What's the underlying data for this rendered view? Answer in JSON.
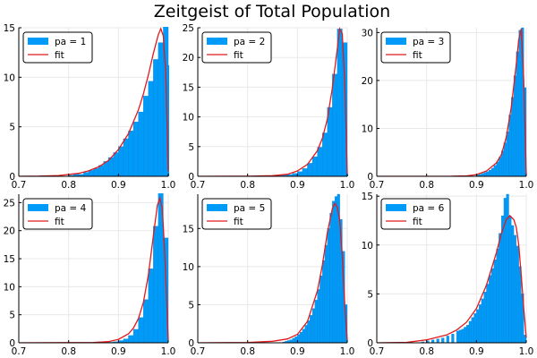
{
  "figure": {
    "title": "Zeitgeist of Total Population"
  },
  "colors": {
    "bar": "#009AF9",
    "fit": "#E21A1C",
    "axis": "#000000",
    "grid": "#e8e8e8"
  },
  "chart_data": [
    {
      "type": "bar",
      "legend": {
        "bar_label": "pa = 1",
        "fit_label": "fit",
        "placement": "top-left"
      },
      "xlim": [
        0.7,
        1.0
      ],
      "xticks": [
        0.7,
        0.8,
        0.9,
        1.0
      ],
      "xtick_labels": [
        "0.7",
        "0.8",
        "0.9",
        "1.0"
      ],
      "ylim": [
        0,
        15
      ],
      "yticks": [
        0,
        5,
        10,
        15
      ],
      "ytick_labels": [
        "0",
        "5",
        "10",
        "15"
      ],
      "bin_width": 0.01,
      "bins": [
        {
          "x": 0.8,
          "y": 0.1
        },
        {
          "x": 0.81,
          "y": 0.2
        },
        {
          "x": 0.82,
          "y": 0.2
        },
        {
          "x": 0.83,
          "y": 0.4
        },
        {
          "x": 0.84,
          "y": 0.6
        },
        {
          "x": 0.85,
          "y": 0.8
        },
        {
          "x": 0.86,
          "y": 1.1
        },
        {
          "x": 0.87,
          "y": 1.5
        },
        {
          "x": 0.88,
          "y": 1.9
        },
        {
          "x": 0.89,
          "y": 2.4
        },
        {
          "x": 0.9,
          "y": 3.0
        },
        {
          "x": 0.91,
          "y": 3.8
        },
        {
          "x": 0.92,
          "y": 4.6
        },
        {
          "x": 0.93,
          "y": 5.5
        },
        {
          "x": 0.94,
          "y": 6.5
        },
        {
          "x": 0.95,
          "y": 8.1
        },
        {
          "x": 0.96,
          "y": 9.6
        },
        {
          "x": 0.97,
          "y": 11.8
        },
        {
          "x": 0.98,
          "y": 13.5
        },
        {
          "x": 0.99,
          "y": 15.3
        },
        {
          "x": 1.0,
          "y": 11.2
        }
      ],
      "fit": [
        [
          0.7,
          0
        ],
        [
          0.74,
          0.02
        ],
        [
          0.78,
          0.08
        ],
        [
          0.82,
          0.3
        ],
        [
          0.84,
          0.55
        ],
        [
          0.86,
          0.95
        ],
        [
          0.88,
          1.6
        ],
        [
          0.9,
          2.7
        ],
        [
          0.92,
          4.3
        ],
        [
          0.94,
          6.7
        ],
        [
          0.95,
          8.3
        ],
        [
          0.96,
          10.2
        ],
        [
          0.97,
          12.4
        ],
        [
          0.98,
          14.3
        ],
        [
          0.985,
          14.9
        ],
        [
          0.99,
          14.2
        ],
        [
          0.995,
          10.5
        ],
        [
          1.0,
          0.5
        ]
      ]
    },
    {
      "type": "bar",
      "legend": {
        "bar_label": "pa = 2",
        "fit_label": "fit",
        "placement": "top-left"
      },
      "xlim": [
        0.7,
        1.0
      ],
      "xticks": [
        0.7,
        0.8,
        0.9,
        1.0
      ],
      "xtick_labels": [
        "0.7",
        "0.8",
        "0.9",
        "1.0"
      ],
      "ylim": [
        0,
        25
      ],
      "yticks": [
        0,
        5,
        10,
        15,
        20,
        25
      ],
      "ytick_labels": [
        "0",
        "5",
        "10",
        "15",
        "20",
        "25"
      ],
      "bin_width": 0.01,
      "bins": [
        {
          "x": 0.86,
          "y": 0.1
        },
        {
          "x": 0.87,
          "y": 0.2
        },
        {
          "x": 0.88,
          "y": 0.3
        },
        {
          "x": 0.89,
          "y": 0.5
        },
        {
          "x": 0.9,
          "y": 0.8
        },
        {
          "x": 0.91,
          "y": 1.3
        },
        {
          "x": 0.92,
          "y": 2.2
        },
        {
          "x": 0.93,
          "y": 3.3
        },
        {
          "x": 0.94,
          "y": 4.9
        },
        {
          "x": 0.95,
          "y": 7.3
        },
        {
          "x": 0.96,
          "y": 11.6
        },
        {
          "x": 0.97,
          "y": 17.2
        },
        {
          "x": 0.98,
          "y": 24.8
        },
        {
          "x": 0.99,
          "y": 22.5
        },
        {
          "x": 1.0,
          "y": 0.3
        }
      ],
      "fit": [
        [
          0.7,
          0
        ],
        [
          0.8,
          0.02
        ],
        [
          0.85,
          0.1
        ],
        [
          0.88,
          0.35
        ],
        [
          0.9,
          0.9
        ],
        [
          0.92,
          2.0
        ],
        [
          0.94,
          4.3
        ],
        [
          0.95,
          6.4
        ],
        [
          0.96,
          9.6
        ],
        [
          0.97,
          14.8
        ],
        [
          0.98,
          21.5
        ],
        [
          0.985,
          24.8
        ],
        [
          0.99,
          24.0
        ],
        [
          0.995,
          16.0
        ],
        [
          1.0,
          0.4
        ]
      ]
    },
    {
      "type": "bar",
      "legend": {
        "bar_label": "pa = 3",
        "fit_label": "fit",
        "placement": "top-left"
      },
      "xlim": [
        0.7,
        1.0
      ],
      "xticks": [
        0.7,
        0.8,
        0.9,
        1.0
      ],
      "xtick_labels": [
        "0.7",
        "0.8",
        "0.9",
        "1.0"
      ],
      "ylim": [
        0,
        31
      ],
      "yticks": [
        0,
        10,
        20,
        30
      ],
      "ytick_labels": [
        "0",
        "10",
        "20",
        "30"
      ],
      "bin_width": 0.005,
      "bins": [
        {
          "x": 0.9,
          "y": 0.3
        },
        {
          "x": 0.905,
          "y": 0.4
        },
        {
          "x": 0.91,
          "y": 0.6
        },
        {
          "x": 0.915,
          "y": 0.8
        },
        {
          "x": 0.92,
          "y": 1.0
        },
        {
          "x": 0.925,
          "y": 1.3
        },
        {
          "x": 0.93,
          "y": 1.7
        },
        {
          "x": 0.935,
          "y": 2.3
        },
        {
          "x": 0.94,
          "y": 3.0
        },
        {
          "x": 0.945,
          "y": 4.0
        },
        {
          "x": 0.95,
          "y": 5.3
        },
        {
          "x": 0.955,
          "y": 7.0
        },
        {
          "x": 0.96,
          "y": 9.3
        },
        {
          "x": 0.965,
          "y": 12.8
        },
        {
          "x": 0.97,
          "y": 16.5
        },
        {
          "x": 0.975,
          "y": 21.0
        },
        {
          "x": 0.98,
          "y": 26.0
        },
        {
          "x": 0.985,
          "y": 30.5
        },
        {
          "x": 0.99,
          "y": 31.0
        },
        {
          "x": 0.995,
          "y": 18.5
        }
      ],
      "fit": [
        [
          0.7,
          0
        ],
        [
          0.85,
          0.02
        ],
        [
          0.88,
          0.1
        ],
        [
          0.9,
          0.35
        ],
        [
          0.92,
          1.1
        ],
        [
          0.94,
          2.8
        ],
        [
          0.95,
          4.5
        ],
        [
          0.96,
          8.2
        ],
        [
          0.97,
          14.5
        ],
        [
          0.98,
          23.5
        ],
        [
          0.985,
          28.5
        ],
        [
          0.99,
          30.8
        ],
        [
          0.995,
          20.0
        ],
        [
          1.0,
          0.5
        ]
      ]
    },
    {
      "type": "bar",
      "legend": {
        "bar_label": "pa = 4",
        "fit_label": "fit",
        "placement": "top-left"
      },
      "xlim": [
        0.7,
        1.0
      ],
      "xticks": [
        0.7,
        0.8,
        0.9,
        1.0
      ],
      "xtick_labels": [
        "0.7",
        "0.8",
        "0.9",
        "1.0"
      ],
      "ylim": [
        0,
        26.5
      ],
      "yticks": [
        0,
        5,
        10,
        15,
        20,
        25
      ],
      "ytick_labels": [
        "0",
        "5",
        "10",
        "15",
        "20",
        "25"
      ],
      "bin_width": 0.01,
      "bins": [
        {
          "x": 0.88,
          "y": 0.1
        },
        {
          "x": 0.89,
          "y": 0.2
        },
        {
          "x": 0.9,
          "y": 0.4
        },
        {
          "x": 0.91,
          "y": 0.7
        },
        {
          "x": 0.92,
          "y": 1.3
        },
        {
          "x": 0.93,
          "y": 2.4
        },
        {
          "x": 0.94,
          "y": 4.5
        },
        {
          "x": 0.95,
          "y": 7.7
        },
        {
          "x": 0.96,
          "y": 13.2
        },
        {
          "x": 0.97,
          "y": 20.8
        },
        {
          "x": 0.98,
          "y": 26.8
        },
        {
          "x": 0.99,
          "y": 18.7
        }
      ],
      "fit": [
        [
          0.7,
          0
        ],
        [
          0.85,
          0.05
        ],
        [
          0.88,
          0.2
        ],
        [
          0.9,
          0.6
        ],
        [
          0.92,
          1.6
        ],
        [
          0.93,
          2.6
        ],
        [
          0.94,
          4.3
        ],
        [
          0.95,
          7.2
        ],
        [
          0.96,
          12.0
        ],
        [
          0.97,
          19.0
        ],
        [
          0.978,
          24.5
        ],
        [
          0.983,
          25.8
        ],
        [
          0.988,
          24.0
        ],
        [
          0.993,
          16.0
        ],
        [
          1.0,
          0.5
        ]
      ]
    },
    {
      "type": "bar",
      "legend": {
        "bar_label": "pa = 5",
        "fit_label": "fit",
        "placement": "top-left"
      },
      "xlim": [
        0.7,
        1.0
      ],
      "xticks": [
        0.7,
        0.8,
        0.9,
        1.0
      ],
      "xtick_labels": [
        "0.7",
        "0.8",
        "0.9",
        "1.0"
      ],
      "ylim": [
        0,
        19.5
      ],
      "yticks": [
        0,
        5,
        10,
        15
      ],
      "ytick_labels": [
        "0",
        "5",
        "10",
        "15"
      ],
      "bin_width": 0.005,
      "bins": [
        {
          "x": 0.87,
          "y": 0.1
        },
        {
          "x": 0.875,
          "y": 0.2
        },
        {
          "x": 0.88,
          "y": 0.3
        },
        {
          "x": 0.885,
          "y": 0.4
        },
        {
          "x": 0.89,
          "y": 0.6
        },
        {
          "x": 0.895,
          "y": 0.8
        },
        {
          "x": 0.9,
          "y": 1.1
        },
        {
          "x": 0.905,
          "y": 1.4
        },
        {
          "x": 0.91,
          "y": 1.8
        },
        {
          "x": 0.915,
          "y": 2.3
        },
        {
          "x": 0.92,
          "y": 2.9
        },
        {
          "x": 0.925,
          "y": 3.6
        },
        {
          "x": 0.93,
          "y": 4.5
        },
        {
          "x": 0.935,
          "y": 5.6
        },
        {
          "x": 0.94,
          "y": 7.0
        },
        {
          "x": 0.945,
          "y": 8.8
        },
        {
          "x": 0.95,
          "y": 10.8
        },
        {
          "x": 0.955,
          "y": 12.8
        },
        {
          "x": 0.96,
          "y": 15.0
        },
        {
          "x": 0.965,
          "y": 17.0
        },
        {
          "x": 0.97,
          "y": 18.6
        },
        {
          "x": 0.975,
          "y": 19.2
        },
        {
          "x": 0.98,
          "y": 19.5
        },
        {
          "x": 0.985,
          "y": 16.2
        },
        {
          "x": 0.99,
          "y": 12.0
        },
        {
          "x": 0.995,
          "y": 5.0
        }
      ],
      "fit": [
        [
          0.7,
          0
        ],
        [
          0.8,
          0.03
        ],
        [
          0.85,
          0.2
        ],
        [
          0.88,
          0.5
        ],
        [
          0.9,
          1.1
        ],
        [
          0.92,
          2.8
        ],
        [
          0.94,
          6.8
        ],
        [
          0.95,
          10.2
        ],
        [
          0.96,
          14.4
        ],
        [
          0.97,
          17.6
        ],
        [
          0.975,
          18.3
        ],
        [
          0.98,
          17.8
        ],
        [
          0.985,
          16.0
        ],
        [
          0.99,
          11.5
        ],
        [
          0.995,
          5.0
        ],
        [
          1.0,
          0.3
        ]
      ]
    },
    {
      "type": "bar",
      "legend": {
        "bar_label": "pa = 6",
        "fit_label": "fit",
        "placement": "top-left"
      },
      "xlim": [
        0.7,
        1.0
      ],
      "xticks": [
        0.7,
        0.8,
        0.9,
        1.0
      ],
      "xtick_labels": [
        "0.7",
        "0.8",
        "0.9",
        "1.0"
      ],
      "ylim": [
        0,
        15.2
      ],
      "yticks": [
        0,
        5,
        10,
        15
      ],
      "ytick_labels": [
        "0",
        "5",
        "10",
        "15"
      ],
      "bin_width": 0.005,
      "bins": [
        {
          "x": 0.79,
          "y": 0.1
        },
        {
          "x": 0.8,
          "y": 0.2
        },
        {
          "x": 0.81,
          "y": 0.3
        },
        {
          "x": 0.82,
          "y": 0.4
        },
        {
          "x": 0.83,
          "y": 0.5
        },
        {
          "x": 0.84,
          "y": 0.7
        },
        {
          "x": 0.85,
          "y": 0.9
        },
        {
          "x": 0.86,
          "y": 1.2
        },
        {
          "x": 0.865,
          "y": 1.3
        },
        {
          "x": 0.87,
          "y": 1.4
        },
        {
          "x": 0.875,
          "y": 1.6
        },
        {
          "x": 0.88,
          "y": 1.8
        },
        {
          "x": 0.885,
          "y": 2.2
        },
        {
          "x": 0.89,
          "y": 2.6
        },
        {
          "x": 0.895,
          "y": 3.0
        },
        {
          "x": 0.9,
          "y": 3.4
        },
        {
          "x": 0.905,
          "y": 3.9
        },
        {
          "x": 0.91,
          "y": 4.5
        },
        {
          "x": 0.915,
          "y": 5.2
        },
        {
          "x": 0.92,
          "y": 6.0
        },
        {
          "x": 0.925,
          "y": 6.9
        },
        {
          "x": 0.93,
          "y": 7.6
        },
        {
          "x": 0.935,
          "y": 8.5
        },
        {
          "x": 0.94,
          "y": 9.6
        },
        {
          "x": 0.945,
          "y": 11.2
        },
        {
          "x": 0.95,
          "y": 13.0
        },
        {
          "x": 0.955,
          "y": 14.8
        },
        {
          "x": 0.96,
          "y": 15.2
        },
        {
          "x": 0.965,
          "y": 13.0
        },
        {
          "x": 0.97,
          "y": 12.0
        },
        {
          "x": 0.975,
          "y": 11.0
        },
        {
          "x": 0.98,
          "y": 9.9
        },
        {
          "x": 0.985,
          "y": 7.8
        },
        {
          "x": 0.99,
          "y": 5.0
        },
        {
          "x": 0.995,
          "y": 0.8
        }
      ],
      "fit": [
        [
          0.7,
          0
        ],
        [
          0.76,
          0.05
        ],
        [
          0.8,
          0.3
        ],
        [
          0.84,
          0.8
        ],
        [
          0.86,
          1.3
        ],
        [
          0.88,
          2.1
        ],
        [
          0.9,
          3.5
        ],
        [
          0.92,
          5.9
        ],
        [
          0.94,
          9.2
        ],
        [
          0.95,
          11.2
        ],
        [
          0.96,
          12.6
        ],
        [
          0.967,
          13.0
        ],
        [
          0.975,
          12.6
        ],
        [
          0.98,
          11.8
        ],
        [
          0.985,
          10.0
        ],
        [
          0.99,
          6.9
        ],
        [
          0.995,
          3.5
        ],
        [
          1.0,
          0.5
        ]
      ]
    }
  ]
}
